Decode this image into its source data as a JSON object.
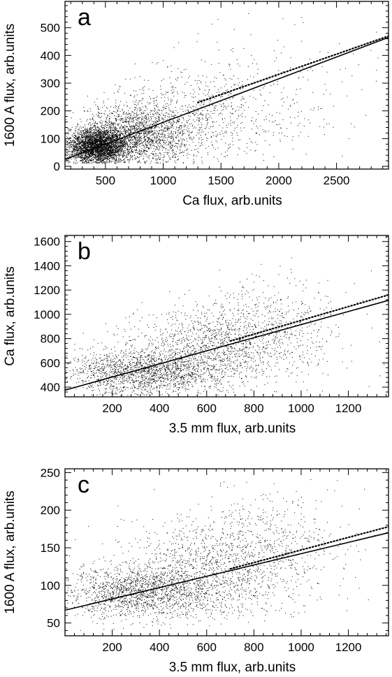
{
  "figure": {
    "background": "#ffffff",
    "ink": "#000000"
  },
  "chart_data": [
    {
      "type": "scatter",
      "panel_label": "a",
      "title": "",
      "xlabel": "Ca flux, arb.units",
      "ylabel": "1600 A flux, arb.units",
      "xlim": [
        150,
        2950
      ],
      "ylim": [
        -10,
        595
      ],
      "x_ticks": [
        500,
        1000,
        1500,
        2000,
        2500
      ],
      "y_ticks": [
        0,
        100,
        200,
        300,
        400,
        500
      ],
      "grid": false,
      "legend": "none",
      "series": [
        {
          "kind": "points",
          "marker": "dot",
          "clusters": [
            {
              "center": [
                430,
                72
              ],
              "spread": [
                130,
                32
              ],
              "count": 3400
            },
            {
              "center": [
                780,
                115
              ],
              "spread": [
                230,
                55
              ],
              "count": 1900
            },
            {
              "center": [
                1280,
                175
              ],
              "spread": [
                320,
                85
              ],
              "count": 650
            },
            {
              "center": [
                1900,
                250
              ],
              "spread": [
                450,
                120
              ],
              "count": 220
            }
          ],
          "x_range": [
            150,
            2950
          ],
          "y_range": [
            10,
            560
          ]
        },
        {
          "kind": "fit",
          "style": "solid",
          "x": [
            150,
            2950
          ],
          "y": [
            25,
            465
          ]
        },
        {
          "kind": "fit",
          "style": "dotted",
          "x": [
            1300,
            2950
          ],
          "y": [
            230,
            470
          ]
        }
      ]
    },
    {
      "type": "scatter",
      "panel_label": "b",
      "title": "",
      "xlabel": "3.5 mm flux, arb.units",
      "ylabel": "Ca flux, arb.units",
      "xlim": [
        0,
        1370
      ],
      "ylim": [
        320,
        1650
      ],
      "x_ticks": [
        200,
        400,
        600,
        800,
        1000,
        1200
      ],
      "y_ticks": [
        400,
        600,
        800,
        1000,
        1200,
        1400,
        1600
      ],
      "grid": false,
      "legend": "none",
      "series": [
        {
          "kind": "points",
          "marker": "dot",
          "clusters": [
            {
              "center": [
                330,
                520
              ],
              "spread": [
                170,
                90
              ],
              "count": 1700
            },
            {
              "center": [
                620,
                740
              ],
              "spread": [
                190,
                160
              ],
              "count": 1200
            },
            {
              "center": [
                860,
                900
              ],
              "spread": [
                170,
                210
              ],
              "count": 450
            }
          ],
          "x_range": [
            0,
            1370
          ],
          "y_range": [
            330,
            1480
          ]
        },
        {
          "kind": "fit",
          "style": "solid",
          "x": [
            0,
            1370
          ],
          "y": [
            375,
            1115
          ]
        },
        {
          "kind": "fit",
          "style": "dotted",
          "x": [
            700,
            1370
          ],
          "y": [
            780,
            1160
          ]
        }
      ]
    },
    {
      "type": "scatter",
      "panel_label": "c",
      "title": "",
      "xlabel": "3.5 mm flux, arb.units",
      "ylabel": "1600 A flux, arb.units",
      "xlim": [
        0,
        1370
      ],
      "ylim": [
        33,
        255
      ],
      "x_ticks": [
        200,
        400,
        600,
        800,
        1000,
        1200
      ],
      "y_ticks": [
        50,
        100,
        150,
        200,
        250
      ],
      "grid": false,
      "legend": "none",
      "series": [
        {
          "kind": "points",
          "marker": "dot",
          "clusters": [
            {
              "center": [
                330,
                90
              ],
              "spread": [
                170,
                18
              ],
              "count": 1600
            },
            {
              "center": [
                620,
                125
              ],
              "spread": [
                190,
                30
              ],
              "count": 1100
            },
            {
              "center": [
                860,
                150
              ],
              "spread": [
                170,
                40
              ],
              "count": 450
            }
          ],
          "x_range": [
            0,
            1370
          ],
          "y_range": [
            40,
            245
          ]
        },
        {
          "kind": "fit",
          "style": "solid",
          "x": [
            0,
            1370
          ],
          "y": [
            67,
            170
          ]
        },
        {
          "kind": "fit",
          "style": "dotted",
          "x": [
            700,
            1370
          ],
          "y": [
            122,
            178
          ]
        }
      ]
    }
  ]
}
